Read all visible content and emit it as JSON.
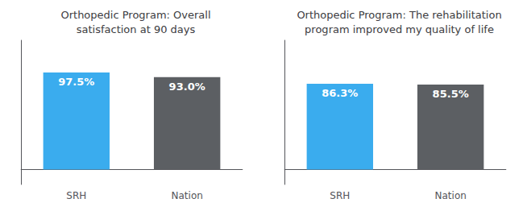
{
  "chart_data": [
    {
      "type": "bar",
      "title": "Orthopedic Program: Overall\nsatisfaction at 90 days",
      "categories": [
        "SRH",
        "Nation"
      ],
      "values": [
        97.5,
        93.0
      ],
      "value_labels": [
        "97.5%",
        "93.0%"
      ],
      "colors": [
        "#3aacee",
        "#5c5f63"
      ],
      "ylim": [
        -15,
        130
      ],
      "grid": false,
      "data_labels": true,
      "tick_labels": "x"
    },
    {
      "type": "bar",
      "title": "Orthopedic Program: The rehabilitation\nprogram improved my quality of life",
      "categories": [
        "SRH",
        "Nation"
      ],
      "values": [
        86.3,
        85.5
      ],
      "value_labels": [
        "86.3%",
        "85.5%"
      ],
      "colors": [
        "#3aacee",
        "#5c5f63"
      ],
      "ylim": [
        -15,
        130
      ],
      "grid": false,
      "data_labels": true,
      "tick_labels": "x"
    }
  ]
}
